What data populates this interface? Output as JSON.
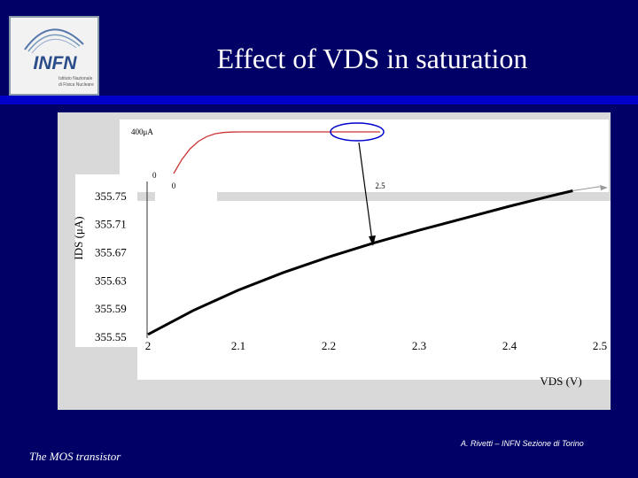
{
  "slide": {
    "title": "Effect of VDS in saturation",
    "footer_left": "The MOS transistor",
    "footer_right": "A. Rivetti – INFN Sezione di Torino"
  },
  "logo": {
    "text": "INFN",
    "subtext_line1": "Istituto Nazionale",
    "subtext_line2": "di Fisica Nucleare"
  },
  "colors": {
    "background": "#000066",
    "title_rule": "#0000c8",
    "inset_curve": "#cc3333",
    "highlight_ellipse": "#0000cc"
  },
  "chart_data": [
    {
      "type": "line",
      "title": "",
      "xlabel": "VDS (V)",
      "ylabel": "IDS (μA)",
      "xlim": [
        2,
        2.5
      ],
      "ylim": [
        355.55,
        355.77
      ],
      "x_ticks": [
        "2",
        "2.1",
        "2.2",
        "2.3",
        "2.4",
        "2.5"
      ],
      "y_ticks": [
        "355.75",
        "355.71",
        "355.67",
        "355.63",
        "355.59",
        "355.55"
      ],
      "series": [
        {
          "x": [
            2.0,
            2.05,
            2.1,
            2.15,
            2.2,
            2.25,
            2.3,
            2.35,
            2.4,
            2.45,
            2.47,
            2.5
          ],
          "y": [
            355.554,
            355.588,
            355.617,
            355.642,
            355.664,
            355.684,
            355.702,
            355.719,
            355.736,
            355.752,
            355.758,
            355.764
          ]
        }
      ]
    },
    {
      "type": "line",
      "title": "",
      "xlim": [
        0,
        2.5
      ],
      "ylim": [
        0,
        400
      ],
      "x_ticks": [
        "0",
        "2.5"
      ],
      "y_ticks": [
        "400μA",
        "0"
      ],
      "series": [
        {
          "x": [
            0,
            0.1,
            0.2,
            0.3,
            0.4,
            0.5,
            0.6,
            0.7,
            0.8,
            0.9,
            2.5
          ],
          "y": [
            0,
            135,
            238,
            310,
            355,
            382,
            394,
            398,
            400,
            400,
            400
          ]
        }
      ]
    }
  ]
}
